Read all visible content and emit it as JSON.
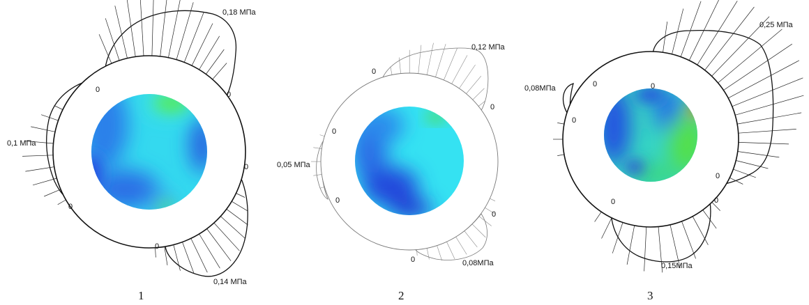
{
  "colors": {
    "ring_outline": "#111111",
    "blue": "#1a56e0",
    "cyan": "#2fe8f0",
    "green": "#48e84a",
    "red": "#c03020"
  },
  "diagrams": [
    {
      "caption": "1",
      "peaks": [
        {
          "value": "0,18 МПа",
          "zeros": [
            "0",
            "0"
          ]
        },
        {
          "value": "0,1 МПа",
          "zeros": [
            "0",
            "0"
          ]
        },
        {
          "value": "0,14 МПа",
          "zeros": [
            "0",
            "0"
          ]
        }
      ]
    },
    {
      "caption": "2",
      "peaks": [
        {
          "value": "0,12 МПа",
          "zeros": [
            "0",
            "0"
          ]
        },
        {
          "value": "0,05 МПа",
          "zeros": [
            "0",
            "0"
          ]
        },
        {
          "value": "0,08МПа",
          "zeros": [
            "0",
            "0"
          ]
        }
      ]
    },
    {
      "caption": "3",
      "peaks": [
        {
          "value": "0,25 МПа",
          "zeros": [
            "0",
            "0"
          ]
        },
        {
          "value": "0,08МПа",
          "zeros": [
            "0",
            "0"
          ]
        },
        {
          "value": "0,15МПа",
          "zeros": [
            "0",
            "0"
          ]
        }
      ]
    }
  ]
}
